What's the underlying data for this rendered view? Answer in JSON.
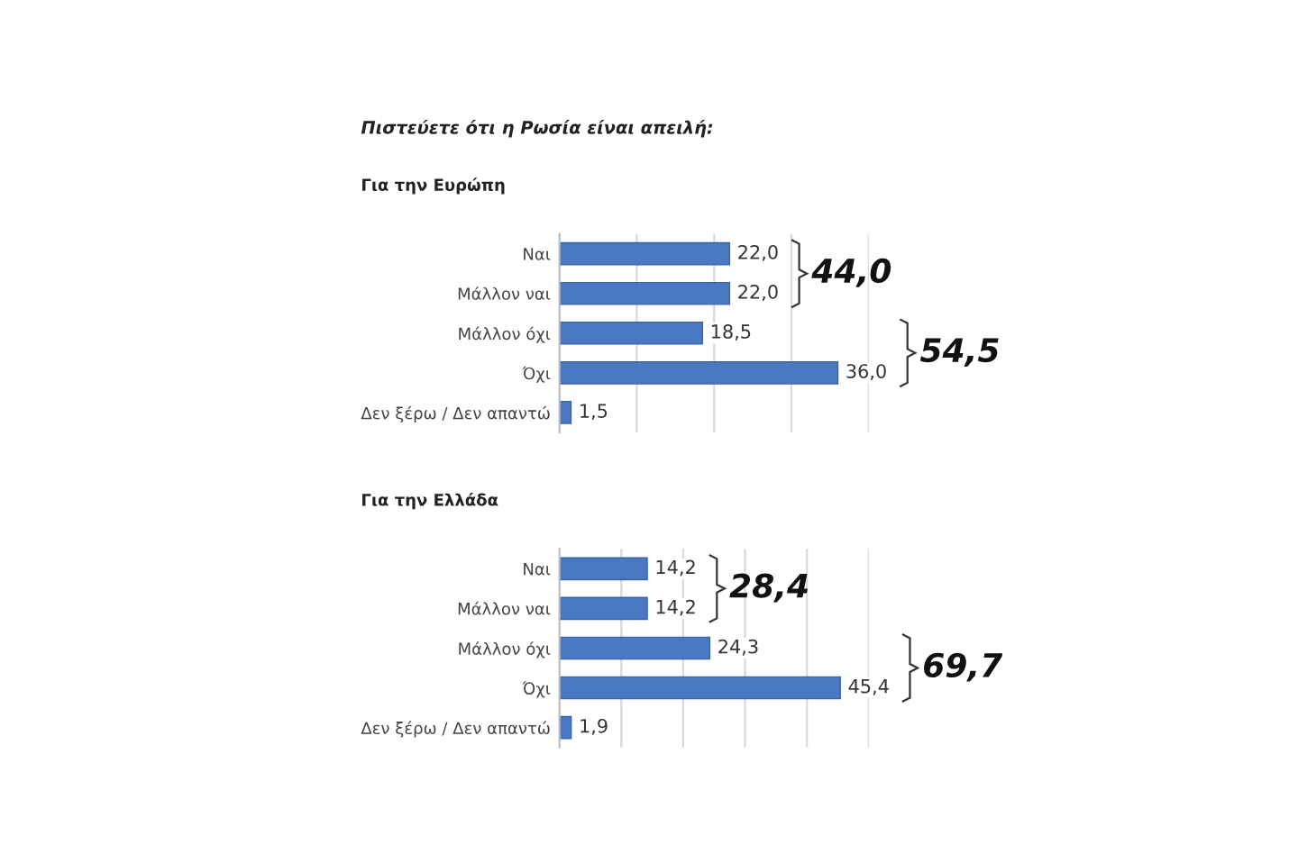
{
  "chart_data": [
    {
      "type": "bar",
      "orientation": "horizontal",
      "title": "Πιστεύετε ότι η Ρωσία είναι απειλή:",
      "subtitle": "Για την Ευρώπη",
      "categories": [
        "Ναι",
        "Μάλλον ναι",
        "Μάλλον όχι",
        "Όχι",
        "Δεν ξέρω / Δεν απαντώ"
      ],
      "values": [
        22.0,
        22.0,
        18.5,
        36.0,
        1.5
      ],
      "value_labels": [
        "22,0",
        "22,0",
        "18,5",
        "36,0",
        "1,5"
      ],
      "color": "#4a78c2",
      "xlim": [
        0,
        40
      ],
      "xticks": [
        {
          "value": 0,
          "label": null
        },
        {
          "value": 10,
          "label": null
        },
        {
          "value": 20,
          "label": null
        },
        {
          "value": 30,
          "label": null
        },
        {
          "value": 40,
          "label": null
        }
      ],
      "grid": "x",
      "tick_labels": "y",
      "annotations": [
        "44,0",
        "54,5"
      ]
    },
    {
      "type": "bar",
      "orientation": "horizontal",
      "subtitle": "Για την Ελλάδα",
      "categories": [
        "Ναι",
        "Μάλλον ναι",
        "Μάλλον όχι",
        "Όχι",
        "Δεν ξέρω / Δεν απαντώ"
      ],
      "values": [
        14.2,
        14.2,
        24.3,
        45.4,
        1.9
      ],
      "value_labels": [
        "14,2",
        "14,2",
        "24,3",
        "45,4",
        "1,9"
      ],
      "color": "#4a78c2",
      "xlim": [
        0,
        50
      ],
      "xticks": [
        {
          "value": 0,
          "label": null
        },
        {
          "value": 10,
          "label": null
        },
        {
          "value": 20,
          "label": null
        },
        {
          "value": 30,
          "label": null
        },
        {
          "value": 40,
          "label": null
        },
        {
          "value": 50,
          "label": null
        }
      ],
      "grid": "x",
      "tick_labels": "y",
      "annotations": [
        "28,4",
        "69,7"
      ]
    }
  ]
}
